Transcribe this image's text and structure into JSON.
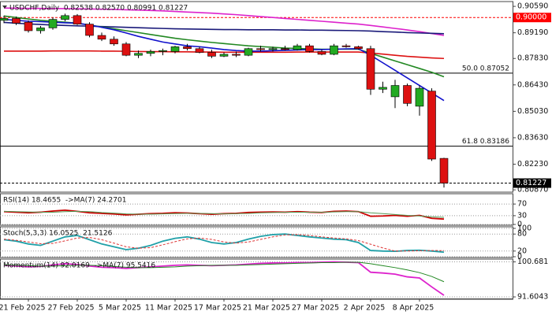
{
  "chart_data": [
    {
      "type": "candlestick",
      "title": "USDCHF,Daily  0.82538 0.82570 0.80991 0.81227",
      "categories": [
        null,
        null,
        "21 Feb 2025",
        null,
        null,
        null,
        "27 Feb 2025",
        null,
        null,
        null,
        "5 Mar 2025",
        null,
        null,
        null,
        "11 Mar 2025",
        null,
        null,
        null,
        "17 Mar 2025",
        null,
        null,
        null,
        "21 Mar 2025",
        null,
        null,
        null,
        "27 Mar 2025",
        null,
        null,
        null,
        "2 Apr 2025",
        null,
        null,
        null,
        "8 Apr 2025",
        null,
        null
      ],
      "open": [
        0.8985,
        0.8995,
        0.8975,
        0.893,
        0.8945,
        0.899,
        0.901,
        0.8965,
        0.8905,
        0.8885,
        0.886,
        0.88,
        0.881,
        0.882,
        0.882,
        0.8845,
        0.8835,
        0.8815,
        0.8795,
        0.8805,
        0.88,
        0.8835,
        0.883,
        0.8835,
        0.883,
        0.885,
        0.882,
        0.8805,
        0.885,
        0.8845,
        0.8835,
        0.862,
        0.858,
        0.864,
        0.853,
        0.861,
        0.82538
      ],
      "high": [
        0.901,
        0.9005,
        0.8985,
        0.8955,
        0.9,
        0.902,
        0.9018,
        0.8975,
        0.892,
        0.89,
        0.887,
        0.8825,
        0.883,
        0.8835,
        0.885,
        0.886,
        0.8845,
        0.883,
        0.8815,
        0.882,
        0.884,
        0.885,
        0.8845,
        0.885,
        0.886,
        0.886,
        0.883,
        0.886,
        0.886,
        0.885,
        0.885,
        0.866,
        0.867,
        0.865,
        0.864,
        0.8625,
        0.8257
      ],
      "low": [
        0.897,
        0.896,
        0.892,
        0.8915,
        0.8935,
        0.898,
        0.896,
        0.8895,
        0.8875,
        0.885,
        0.8795,
        0.8785,
        0.8795,
        0.88,
        0.881,
        0.8825,
        0.881,
        0.8785,
        0.879,
        0.879,
        0.8795,
        0.882,
        0.882,
        0.8825,
        0.8825,
        0.8815,
        0.88,
        0.88,
        0.884,
        0.883,
        0.859,
        0.86,
        0.852,
        0.853,
        0.848,
        0.824,
        0.80991
      ],
      "close": [
        0.8995,
        0.897,
        0.893,
        0.8945,
        0.899,
        0.901,
        0.8965,
        0.8905,
        0.8885,
        0.886,
        0.88,
        0.881,
        0.882,
        0.8825,
        0.8845,
        0.8835,
        0.8815,
        0.8795,
        0.8805,
        0.88,
        0.8835,
        0.883,
        0.8835,
        0.883,
        0.885,
        0.882,
        0.8805,
        0.885,
        0.8845,
        0.8835,
        0.862,
        0.863,
        0.864,
        0.8545,
        0.8625,
        0.825,
        0.81227
      ],
      "up_color": "#22aa22",
      "down_color": "#dd1111",
      "series": [
        {
          "color": "#dd22cc",
          "values": [
            0.905,
            0.9049,
            0.9048,
            0.9048,
            0.9047,
            0.9047,
            0.9046,
            0.9045,
            0.9044,
            0.9043,
            0.9041,
            0.9039,
            0.9037,
            0.9035,
            0.9032,
            0.9029,
            0.9026,
            0.9023,
            0.9019,
            0.9015,
            0.901,
            0.9005,
            0.9,
            0.8995,
            0.899,
            0.8985,
            0.898,
            0.8975,
            0.897,
            0.8965,
            0.8958,
            0.895,
            0.8942,
            0.8934,
            0.8925,
            0.8915,
            0.8905
          ]
        },
        {
          "color": "#1a1a7a",
          "values": [
            0.8974,
            0.897,
            0.8966,
            0.8963,
            0.896,
            0.8958,
            0.8956,
            0.8954,
            0.8952,
            0.895,
            0.8948,
            0.8946,
            0.8944,
            0.8942,
            0.894,
            0.8939,
            0.8938,
            0.8937,
            0.8936,
            0.8936,
            0.8935,
            0.8935,
            0.8935,
            0.8934,
            0.8934,
            0.8933,
            0.8933,
            0.8932,
            0.8931,
            0.893,
            0.8928,
            0.8925,
            0.8923,
            0.892,
            0.8918,
            0.8916,
            0.8914
          ]
        },
        {
          "color": "#dd1111",
          "values": [
            0.8822,
            0.8822,
            0.8822,
            0.8822,
            0.8823,
            0.8823,
            0.8823,
            0.8823,
            0.8822,
            0.8822,
            0.8821,
            0.882,
            0.8819,
            0.8819,
            0.8818,
            0.8818,
            0.8817,
            0.8817,
            0.8816,
            0.8816,
            0.8816,
            0.8816,
            0.8816,
            0.8816,
            0.8817,
            0.8817,
            0.8817,
            0.8817,
            0.8817,
            0.8817,
            0.8812,
            0.8806,
            0.88,
            0.8794,
            0.879,
            0.8786,
            0.8783
          ]
        },
        {
          "color": "#228822",
          "values": [
            0.9008,
            0.9,
            0.8992,
            0.8985,
            0.898,
            0.8975,
            0.897,
            0.896,
            0.895,
            0.894,
            0.893,
            0.892,
            0.891,
            0.89,
            0.889,
            0.8882,
            0.8875,
            0.8868,
            0.8862,
            0.8856,
            0.885,
            0.8846,
            0.8842,
            0.8838,
            0.8836,
            0.8834,
            0.8832,
            0.8832,
            0.8832,
            0.8832,
            0.881,
            0.879,
            0.877,
            0.875,
            0.873,
            0.871,
            0.8686
          ]
        },
        {
          "color": "#1111cc",
          "values": [
            0.899,
            0.8985,
            0.898,
            0.8978,
            0.8975,
            0.8972,
            0.897,
            0.896,
            0.8948,
            0.8935,
            0.8918,
            0.89,
            0.8885,
            0.887,
            0.886,
            0.885,
            0.8845,
            0.8838,
            0.883,
            0.8825,
            0.8822,
            0.8822,
            0.8824,
            0.8826,
            0.8828,
            0.883,
            0.883,
            0.8832,
            0.8834,
            0.8835,
            0.88,
            0.876,
            0.872,
            0.868,
            0.864,
            0.86,
            0.856
          ]
        }
      ],
      "ylim": [
        0.8079,
        0.9076
      ],
      "yticks": [
        {
          "value": 0.9059,
          "label": "0.90590"
        },
        {
          "value": 0.8919,
          "label": "0.89190"
        },
        {
          "value": 0.8783,
          "label": "0.87830"
        },
        {
          "value": 0.8643,
          "label": "0.86430"
        },
        {
          "value": 0.8503,
          "label": "0.85030"
        },
        {
          "value": 0.8363,
          "label": "0.83630"
        },
        {
          "value": 0.8223,
          "label": "0.82230"
        },
        {
          "value": 0.8087,
          "label": "0.80870"
        }
      ],
      "price_lines": [
        {
          "value": 0.9,
          "label": "0.90000",
          "color": "#ff0000"
        },
        {
          "value": 0.81227,
          "label": "0.81227",
          "color": "#000000"
        }
      ],
      "fibo_levels": [
        {
          "value": 0.87052,
          "label": "50.0 0.87052"
        },
        {
          "value": 0.83186,
          "label": "61.8 0.83186"
        }
      ]
    },
    {
      "type": "line",
      "title": "RSI(14) 18.4655  ->MA(7) 24.2701",
      "series": [
        {
          "color": "#cc0000",
          "values": [
            44,
            42,
            40,
            42,
            46,
            49,
            45,
            40,
            38,
            36,
            33,
            35,
            37,
            38,
            40,
            39,
            37,
            35,
            37,
            38,
            41,
            42,
            43,
            42,
            44,
            42,
            41,
            45,
            46,
            44,
            28,
            29,
            31,
            28,
            31,
            21,
            18.4655
          ]
        },
        {
          "color": "#559955",
          "values": [
            45,
            44,
            43,
            42,
            42,
            44,
            45,
            44,
            41,
            39,
            36,
            35,
            35,
            36,
            37,
            38,
            38,
            37,
            36,
            37,
            38,
            40,
            41,
            42,
            42,
            42,
            42,
            43,
            44,
            44,
            40,
            37,
            34,
            31,
            29,
            26,
            24.2701
          ]
        }
      ],
      "ylim": [
        0,
        100
      ],
      "yticks": [
        70,
        30,
        0
      ]
    },
    {
      "type": "line",
      "title": "Stoch(5,3,3) 16.0525  21.5126",
      "series": [
        {
          "color": "#20a0a8",
          "values": [
            60,
            55,
            45,
            40,
            55,
            70,
            75,
            60,
            45,
            35,
            25,
            30,
            40,
            55,
            65,
            70,
            62,
            50,
            45,
            50,
            62,
            72,
            78,
            80,
            75,
            70,
            66,
            62,
            60,
            50,
            22,
            20,
            19,
            22,
            23,
            20,
            16.0525
          ]
        },
        {
          "color": "#dd3333",
          "dashed": true,
          "values": [
            62,
            58,
            52,
            46,
            47,
            56,
            66,
            68,
            60,
            48,
            35,
            30,
            32,
            42,
            53,
            63,
            66,
            61,
            52,
            48,
            52,
            61,
            70,
            77,
            78,
            75,
            70,
            66,
            63,
            57,
            44,
            31,
            20,
            20,
            21,
            22,
            21.5126
          ]
        }
      ],
      "ylim": [
        0,
        100
      ],
      "yticks": [
        100,
        80,
        20,
        0
      ]
    },
    {
      "type": "line",
      "title": "Momentum(14) 92.0169  ->MA(7) 95.5416",
      "series": [
        {
          "color": "#dd22cc",
          "values": [
            99.8,
            99.6,
            99.4,
            99.5,
            99.9,
            100.2,
            100.0,
            99.6,
            99.3,
            99.2,
            99.0,
            99.2,
            99.4,
            99.6,
            99.8,
            99.9,
            99.8,
            99.7,
            99.8,
            99.9,
            100.1,
            100.3,
            100.4,
            100.4,
            100.5,
            100.5,
            100.6,
            100.68,
            100.6,
            100.5,
            98.0,
            97.8,
            97.5,
            96.8,
            96.5,
            94.2,
            92.0169
          ]
        },
        {
          "color": "#228822",
          "values": [
            99.9,
            99.8,
            99.7,
            99.6,
            99.6,
            99.7,
            99.8,
            99.8,
            99.7,
            99.5,
            99.3,
            99.2,
            99.2,
            99.3,
            99.4,
            99.6,
            99.7,
            99.8,
            99.8,
            99.8,
            99.9,
            100.0,
            100.1,
            100.2,
            100.3,
            100.4,
            100.5,
            100.5,
            100.6,
            100.6,
            100.2,
            99.7,
            99.2,
            98.6,
            97.9,
            96.9,
            95.5416
          ]
        }
      ],
      "ylim": [
        91.2,
        101.0
      ],
      "yticks": [
        100.681,
        91.6043
      ]
    }
  ]
}
